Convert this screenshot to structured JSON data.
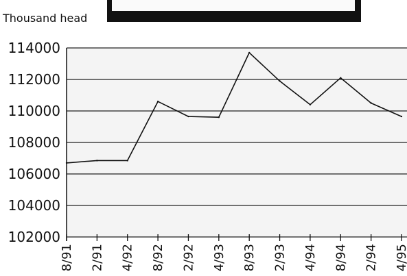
{
  "chart_data": {
    "type": "line",
    "title": "",
    "ylabel": "Thousand head",
    "xlabel": "",
    "ylim": [
      102000,
      114000
    ],
    "yticks": [
      102000,
      104000,
      106000,
      108000,
      110000,
      112000,
      114000
    ],
    "grid": true,
    "categories": [
      "8/91",
      "2/91",
      "4/92",
      "8/92",
      "2/92",
      "4/93",
      "8/93",
      "2/93",
      "4/94",
      "8/94",
      "2/94",
      "4/95"
    ],
    "series": [
      {
        "values": [
          106700,
          106850,
          106850,
          110600,
          109650,
          109600,
          113700,
          111900,
          110400,
          112100,
          110500,
          109650
        ]
      }
    ]
  },
  "colors": {
    "line": "#111111",
    "grid": "#222222",
    "panel": "#f3f3f3",
    "header_bar": "#111111"
  }
}
